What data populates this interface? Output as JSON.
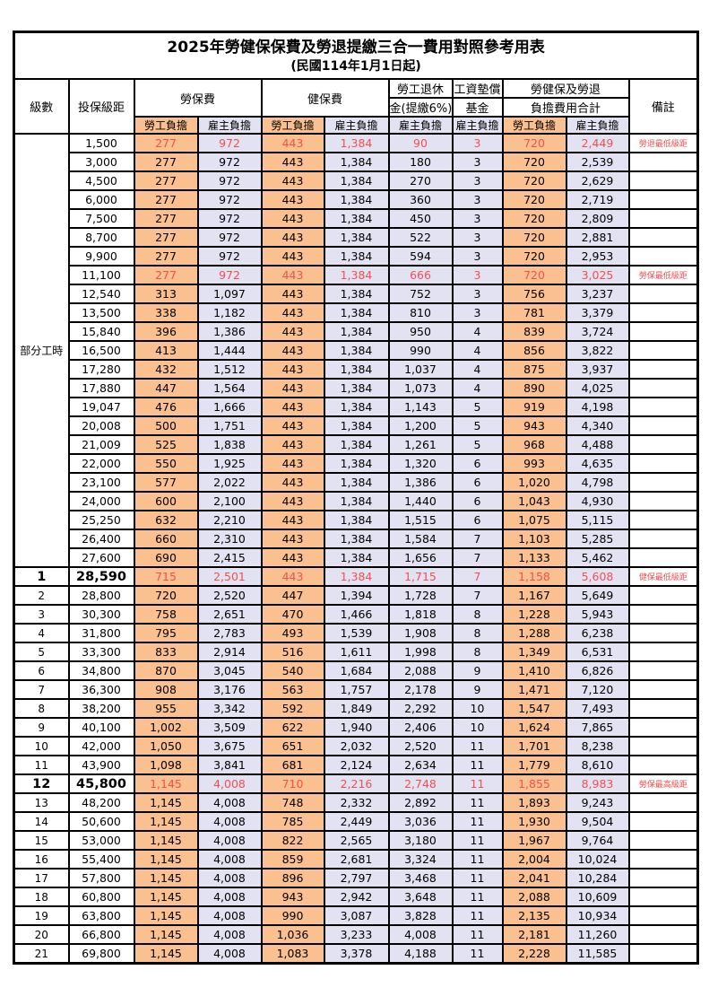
{
  "title": "2025年勞健保保費及勞退提繳三合一費用對照參考用表",
  "subtitle": "(民國114年1月1日起)",
  "header": {
    "level": "級數",
    "bracket": "投保級距",
    "labor_insurance": "勞保費",
    "health_insurance": "健保費",
    "pension_top": "勞工退休",
    "pension_bottom": "金(提繳6%)",
    "wage_fund_top": "工資墊償",
    "wage_fund_bottom": "基金",
    "total_top": "勞健保及勞退",
    "total_bottom": "負擔費用合計",
    "remark": "備註",
    "employee_label": "勞工負擔",
    "employer_label": "雇主負擔"
  },
  "part_time": {
    "label": "部分工時",
    "rowspan": 23
  },
  "colors": {
    "employee_bg": "#fac090",
    "employer_bg": "#e2e2f2",
    "highlight_text": "#f25050",
    "border": "#000000"
  },
  "rows": [
    {
      "level": "",
      "bracket": "1,500",
      "v": [
        "277",
        "972",
        "443",
        "1,384",
        "90",
        "3",
        "720",
        "2,449"
      ],
      "remark": "勞退最低級距",
      "red": true
    },
    {
      "level": "",
      "bracket": "3,000",
      "v": [
        "277",
        "972",
        "443",
        "1,384",
        "180",
        "3",
        "720",
        "2,539"
      ]
    },
    {
      "level": "",
      "bracket": "4,500",
      "v": [
        "277",
        "972",
        "443",
        "1,384",
        "270",
        "3",
        "720",
        "2,629"
      ]
    },
    {
      "level": "",
      "bracket": "6,000",
      "v": [
        "277",
        "972",
        "443",
        "1,384",
        "360",
        "3",
        "720",
        "2,719"
      ]
    },
    {
      "level": "",
      "bracket": "7,500",
      "v": [
        "277",
        "972",
        "443",
        "1,384",
        "450",
        "3",
        "720",
        "2,809"
      ]
    },
    {
      "level": "",
      "bracket": "8,700",
      "v": [
        "277",
        "972",
        "443",
        "1,384",
        "522",
        "3",
        "720",
        "2,881"
      ]
    },
    {
      "level": "",
      "bracket": "9,900",
      "v": [
        "277",
        "972",
        "443",
        "1,384",
        "594",
        "3",
        "720",
        "2,953"
      ]
    },
    {
      "level": "",
      "bracket": "11,100",
      "v": [
        "277",
        "972",
        "443",
        "1,384",
        "666",
        "3",
        "720",
        "3,025"
      ],
      "remark": "勞保最低級距",
      "red": true
    },
    {
      "level": "",
      "bracket": "12,540",
      "v": [
        "313",
        "1,097",
        "443",
        "1,384",
        "752",
        "3",
        "756",
        "3,237"
      ]
    },
    {
      "level": "",
      "bracket": "13,500",
      "v": [
        "338",
        "1,182",
        "443",
        "1,384",
        "810",
        "3",
        "781",
        "3,379"
      ]
    },
    {
      "level": "",
      "bracket": "15,840",
      "v": [
        "396",
        "1,386",
        "443",
        "1,384",
        "950",
        "4",
        "839",
        "3,724"
      ]
    },
    {
      "level": "",
      "bracket": "16,500",
      "v": [
        "413",
        "1,444",
        "443",
        "1,384",
        "990",
        "4",
        "856",
        "3,822"
      ]
    },
    {
      "level": "",
      "bracket": "17,280",
      "v": [
        "432",
        "1,512",
        "443",
        "1,384",
        "1,037",
        "4",
        "875",
        "3,937"
      ]
    },
    {
      "level": "",
      "bracket": "17,880",
      "v": [
        "447",
        "1,564",
        "443",
        "1,384",
        "1,073",
        "4",
        "890",
        "4,025"
      ]
    },
    {
      "level": "",
      "bracket": "19,047",
      "v": [
        "476",
        "1,666",
        "443",
        "1,384",
        "1,143",
        "5",
        "919",
        "4,198"
      ]
    },
    {
      "level": "",
      "bracket": "20,008",
      "v": [
        "500",
        "1,751",
        "443",
        "1,384",
        "1,200",
        "5",
        "943",
        "4,340"
      ]
    },
    {
      "level": "",
      "bracket": "21,009",
      "v": [
        "525",
        "1,838",
        "443",
        "1,384",
        "1,261",
        "5",
        "968",
        "4,488"
      ]
    },
    {
      "level": "",
      "bracket": "22,000",
      "v": [
        "550",
        "1,925",
        "443",
        "1,384",
        "1,320",
        "6",
        "993",
        "4,635"
      ]
    },
    {
      "level": "",
      "bracket": "23,100",
      "v": [
        "577",
        "2,022",
        "443",
        "1,384",
        "1,386",
        "6",
        "1,020",
        "4,798"
      ]
    },
    {
      "level": "",
      "bracket": "24,000",
      "v": [
        "600",
        "2,100",
        "443",
        "1,384",
        "1,440",
        "6",
        "1,043",
        "4,930"
      ]
    },
    {
      "level": "",
      "bracket": "25,250",
      "v": [
        "632",
        "2,210",
        "443",
        "1,384",
        "1,515",
        "6",
        "1,075",
        "5,115"
      ]
    },
    {
      "level": "",
      "bracket": "26,400",
      "v": [
        "660",
        "2,310",
        "443",
        "1,384",
        "1,584",
        "7",
        "1,103",
        "5,285"
      ]
    },
    {
      "level": "",
      "bracket": "27,600",
      "v": [
        "690",
        "2,415",
        "443",
        "1,384",
        "1,656",
        "7",
        "1,133",
        "5,462"
      ]
    },
    {
      "level": "1",
      "bracket": "28,590",
      "v": [
        "715",
        "2,501",
        "443",
        "1,384",
        "1,715",
        "7",
        "1,158",
        "5,608"
      ],
      "remark": "健保最低級距",
      "red": true,
      "big": true
    },
    {
      "level": "2",
      "bracket": "28,800",
      "v": [
        "720",
        "2,520",
        "447",
        "1,394",
        "1,728",
        "7",
        "1,167",
        "5,649"
      ]
    },
    {
      "level": "3",
      "bracket": "30,300",
      "v": [
        "758",
        "2,651",
        "470",
        "1,466",
        "1,818",
        "8",
        "1,228",
        "5,943"
      ]
    },
    {
      "level": "4",
      "bracket": "31,800",
      "v": [
        "795",
        "2,783",
        "493",
        "1,539",
        "1,908",
        "8",
        "1,288",
        "6,238"
      ]
    },
    {
      "level": "5",
      "bracket": "33,300",
      "v": [
        "833",
        "2,914",
        "516",
        "1,611",
        "1,998",
        "8",
        "1,349",
        "6,531"
      ]
    },
    {
      "level": "6",
      "bracket": "34,800",
      "v": [
        "870",
        "3,045",
        "540",
        "1,684",
        "2,088",
        "9",
        "1,410",
        "6,826"
      ]
    },
    {
      "level": "7",
      "bracket": "36,300",
      "v": [
        "908",
        "3,176",
        "563",
        "1,757",
        "2,178",
        "9",
        "1,471",
        "7,120"
      ]
    },
    {
      "level": "8",
      "bracket": "38,200",
      "v": [
        "955",
        "3,342",
        "592",
        "1,849",
        "2,292",
        "10",
        "1,547",
        "7,493"
      ]
    },
    {
      "level": "9",
      "bracket": "40,100",
      "v": [
        "1,002",
        "3,509",
        "622",
        "1,940",
        "2,406",
        "10",
        "1,624",
        "7,865"
      ]
    },
    {
      "level": "10",
      "bracket": "42,000",
      "v": [
        "1,050",
        "3,675",
        "651",
        "2,032",
        "2,520",
        "11",
        "1,701",
        "8,238"
      ]
    },
    {
      "level": "11",
      "bracket": "43,900",
      "v": [
        "1,098",
        "3,841",
        "681",
        "2,124",
        "2,634",
        "11",
        "1,779",
        "8,610"
      ]
    },
    {
      "level": "12",
      "bracket": "45,800",
      "v": [
        "1,145",
        "4,008",
        "710",
        "2,216",
        "2,748",
        "11",
        "1,855",
        "8,983"
      ],
      "remark": "勞保最高級距",
      "red": true,
      "big": true
    },
    {
      "level": "13",
      "bracket": "48,200",
      "v": [
        "1,145",
        "4,008",
        "748",
        "2,332",
        "2,892",
        "11",
        "1,893",
        "9,243"
      ]
    },
    {
      "level": "14",
      "bracket": "50,600",
      "v": [
        "1,145",
        "4,008",
        "785",
        "2,449",
        "3,036",
        "11",
        "1,930",
        "9,504"
      ]
    },
    {
      "level": "15",
      "bracket": "53,000",
      "v": [
        "1,145",
        "4,008",
        "822",
        "2,565",
        "3,180",
        "11",
        "1,967",
        "9,764"
      ]
    },
    {
      "level": "16",
      "bracket": "55,400",
      "v": [
        "1,145",
        "4,008",
        "859",
        "2,681",
        "3,324",
        "11",
        "2,004",
        "10,024"
      ]
    },
    {
      "level": "17",
      "bracket": "57,800",
      "v": [
        "1,145",
        "4,008",
        "896",
        "2,797",
        "3,468",
        "11",
        "2,041",
        "10,284"
      ]
    },
    {
      "level": "18",
      "bracket": "60,800",
      "v": [
        "1,145",
        "4,008",
        "943",
        "2,942",
        "3,648",
        "11",
        "2,088",
        "10,609"
      ]
    },
    {
      "level": "19",
      "bracket": "63,800",
      "v": [
        "1,145",
        "4,008",
        "990",
        "3,087",
        "3,828",
        "11",
        "2,135",
        "10,934"
      ]
    },
    {
      "level": "20",
      "bracket": "66,800",
      "v": [
        "1,145",
        "4,008",
        "1,036",
        "3,233",
        "4,008",
        "11",
        "2,181",
        "11,260"
      ]
    },
    {
      "level": "21",
      "bracket": "69,800",
      "v": [
        "1,145",
        "4,008",
        "1,083",
        "3,378",
        "4,188",
        "11",
        "2,228",
        "11,585"
      ]
    }
  ]
}
